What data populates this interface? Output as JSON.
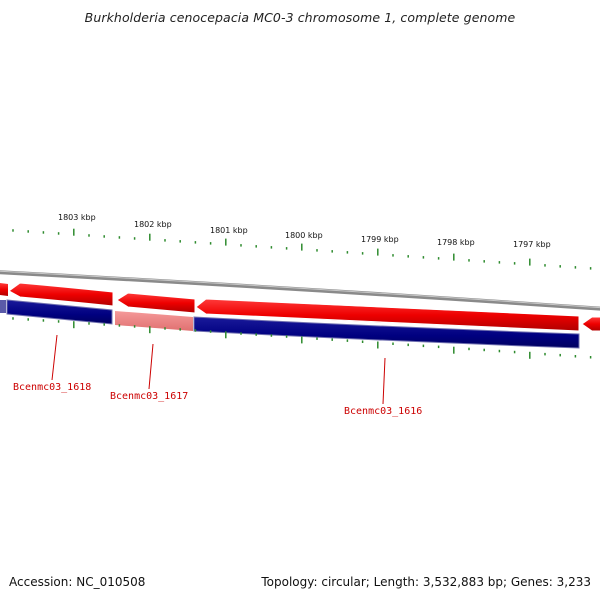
{
  "title": "Burkholderia cenocepacia MC0-3 chromosome 1, complete genome",
  "accession_text": "Accession: NC_010508",
  "summary_text": "Topology: circular; Length: 3,532,883 bp; Genes: 3,233",
  "scale_ticks": [
    {
      "label": "1803 kbp",
      "kbp": 1803
    },
    {
      "label": "1802 kbp",
      "kbp": 1802
    },
    {
      "label": "1801 kbp",
      "kbp": 1801
    },
    {
      "label": "1800 kbp",
      "kbp": 1800
    },
    {
      "label": "1799 kbp",
      "kbp": 1799
    },
    {
      "label": "1798 kbp",
      "kbp": 1798
    },
    {
      "label": "1797 kbp",
      "kbp": 1797
    }
  ],
  "genes": [
    {
      "label": "Bcenmc03_1618"
    },
    {
      "label": "Bcenmc03_1617"
    },
    {
      "label": "Bcenmc03_1616"
    }
  ],
  "colors": {
    "forward_strand": "#ee0000",
    "reverse_strand": "#000080",
    "highlight_strand": "#f08080",
    "backbone": "#888888",
    "ticks": "#2e8b2e",
    "gene_label": "#cc0000"
  }
}
